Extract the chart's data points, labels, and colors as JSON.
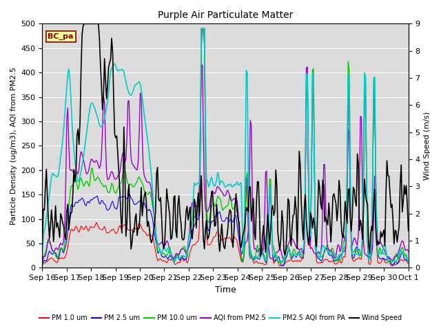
{
  "title": "Purple Air Particulate Matter",
  "xlabel": "Time",
  "ylabel_left": "Particle Density (ug/m3), AQI from PM2.5",
  "ylabel_right": "Wind Speed (m/s)",
  "annotation_text": "BC_pa",
  "annotation_color": "#8B0000",
  "annotation_bg": "#FFFF99",
  "ylim_left": [
    0,
    500
  ],
  "ylim_right": [
    0.0,
    9.0
  ],
  "bg_color": "#DCDCDC",
  "line_colors": {
    "pm1": "#FF0000",
    "pm25": "#0000FF",
    "pm10": "#00CC00",
    "aqi_pm25": "#9900CC",
    "aqi_pa": "#00CCCC",
    "wind": "#000000"
  },
  "line_widths": {
    "pm1": 0.8,
    "pm25": 0.8,
    "pm10": 1.0,
    "aqi_pm25": 1.0,
    "aqi_pa": 1.2,
    "wind": 1.2
  },
  "x_tick_labels": [
    "Sep 16",
    "Sep 17",
    "Sep 18",
    "Sep 19",
    "Sep 20",
    "Sep 21",
    "Sep 22",
    "Sep 23",
    "Sep 24",
    "Sep 25",
    "Sep 26",
    "Sep 27",
    "Sep 28",
    "Sep 29",
    "Sep 30",
    "Oct 1"
  ],
  "legend_entries": [
    {
      "label": "PM 1.0 um",
      "color": "#FF0000"
    },
    {
      "label": "PM 2.5 um",
      "color": "#0000FF"
    },
    {
      "label": "PM 10.0 um",
      "color": "#00CC00"
    },
    {
      "label": "AQI from PM2.5",
      "color": "#9900CC"
    },
    {
      "label": "PM2.5 AQI from PA",
      "color": "#00CCCC"
    },
    {
      "label": "Wind Speed",
      "color": "#000000"
    }
  ]
}
